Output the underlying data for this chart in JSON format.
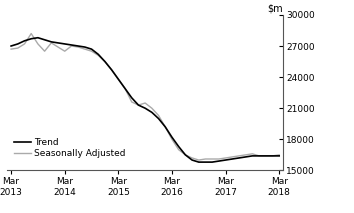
{
  "ylim": [
    15000,
    30000
  ],
  "yticks": [
    15000,
    18000,
    21000,
    24000,
    27000,
    30000
  ],
  "xlabels": [
    "Mar\n2013",
    "Mar\n2014",
    "Mar\n2015",
    "Mar\n2016",
    "Mar\n2017",
    "Mar\n2018"
  ],
  "xtick_positions": [
    0,
    4,
    8,
    12,
    16,
    20
  ],
  "trend_color": "#000000",
  "sa_color": "#aaaaaa",
  "background_color": "#ffffff",
  "legend_labels": [
    "Trend",
    "Seasonally Adjusted"
  ],
  "trend_x": [
    0,
    0.5,
    1,
    1.5,
    2,
    2.5,
    3,
    3.5,
    4,
    4.5,
    5,
    5.5,
    6,
    6.5,
    7,
    7.5,
    8,
    8.5,
    9,
    9.5,
    10,
    10.5,
    11,
    11.5,
    12,
    12.5,
    13,
    13.5,
    14,
    14.5,
    15,
    15.5,
    16,
    16.5,
    17,
    17.5,
    18,
    18.5,
    19,
    19.5,
    20
  ],
  "trend_y": [
    27000,
    27200,
    27500,
    27700,
    27800,
    27600,
    27400,
    27300,
    27200,
    27100,
    27000,
    26900,
    26700,
    26200,
    25500,
    24700,
    23800,
    22900,
    22000,
    21300,
    21000,
    20600,
    20000,
    19200,
    18200,
    17300,
    16500,
    16000,
    15800,
    15800,
    15800,
    15900,
    16000,
    16100,
    16200,
    16300,
    16400,
    16400,
    16400,
    16400,
    16400
  ],
  "sa_x": [
    0,
    0.5,
    1,
    1.5,
    2,
    2.5,
    3,
    3.5,
    4,
    4.5,
    5,
    5.5,
    6,
    6.5,
    7,
    7.5,
    8,
    8.5,
    9,
    9.5,
    10,
    10.5,
    11,
    11.5,
    12,
    12.5,
    13,
    13.5,
    14,
    14.5,
    15,
    15.5,
    16,
    16.5,
    17,
    17.5,
    18,
    18.5,
    19,
    19.5,
    20
  ],
  "sa_y": [
    26700,
    26800,
    27200,
    28200,
    27200,
    26500,
    27300,
    26900,
    26500,
    27000,
    26900,
    26700,
    26500,
    26100,
    25500,
    24700,
    23800,
    22900,
    21600,
    21300,
    21500,
    21000,
    20300,
    19200,
    18000,
    17000,
    16500,
    16200,
    16000,
    16100,
    16100,
    16100,
    16200,
    16300,
    16400,
    16500,
    16600,
    16400,
    16400,
    16400,
    16500
  ]
}
